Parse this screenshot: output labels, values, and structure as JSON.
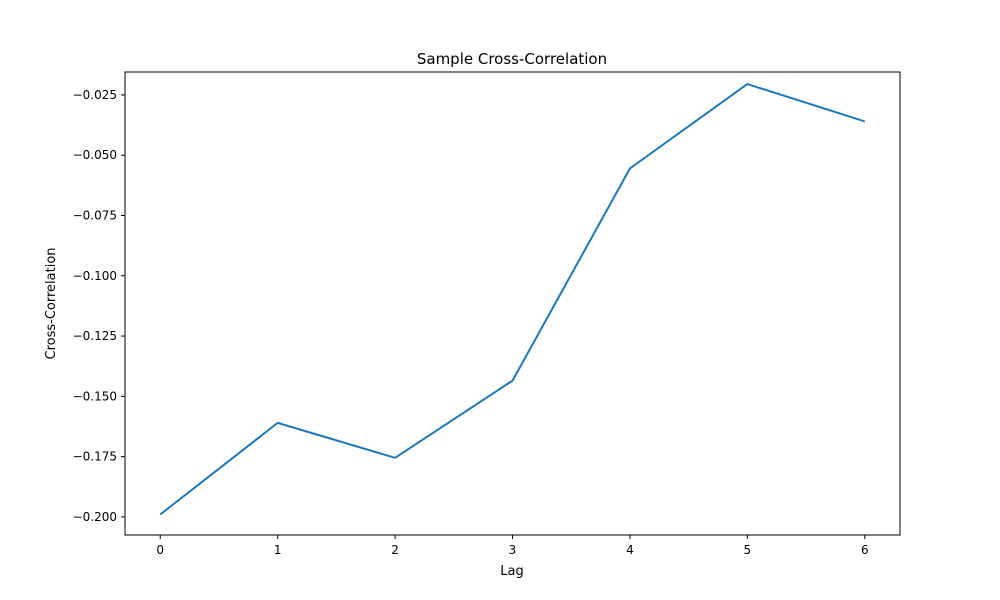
{
  "chart_data": {
    "type": "line",
    "title": "Sample Cross-Correlation",
    "xlabel": "Lag",
    "ylabel": "Cross-Correlation",
    "x": [
      0,
      1,
      2,
      3,
      4,
      5,
      6
    ],
    "series": [
      {
        "values": [
          -0.199,
          -0.161,
          -0.1755,
          -0.1435,
          -0.0555,
          -0.0205,
          -0.036
        ]
      }
    ],
    "xlim": [
      -0.3,
      6.3
    ],
    "ylim": [
      -0.2075,
      -0.0155
    ],
    "xticks": [
      0,
      1,
      2,
      3,
      4,
      5,
      6
    ],
    "xtick_labels": [
      "0",
      "1",
      "2",
      "3",
      "4",
      "5",
      "6"
    ],
    "yticks": [
      -0.2,
      -0.175,
      -0.15,
      -0.125,
      -0.1,
      -0.075,
      -0.05,
      -0.025
    ],
    "ytick_labels": [
      "−0.200",
      "−0.175",
      "−0.150",
      "−0.125",
      "−0.100",
      "−0.075",
      "−0.050",
      "−0.025"
    ],
    "grid": false,
    "legend": "none",
    "line_color": "#1f77b4",
    "axis_color": "#000000"
  }
}
